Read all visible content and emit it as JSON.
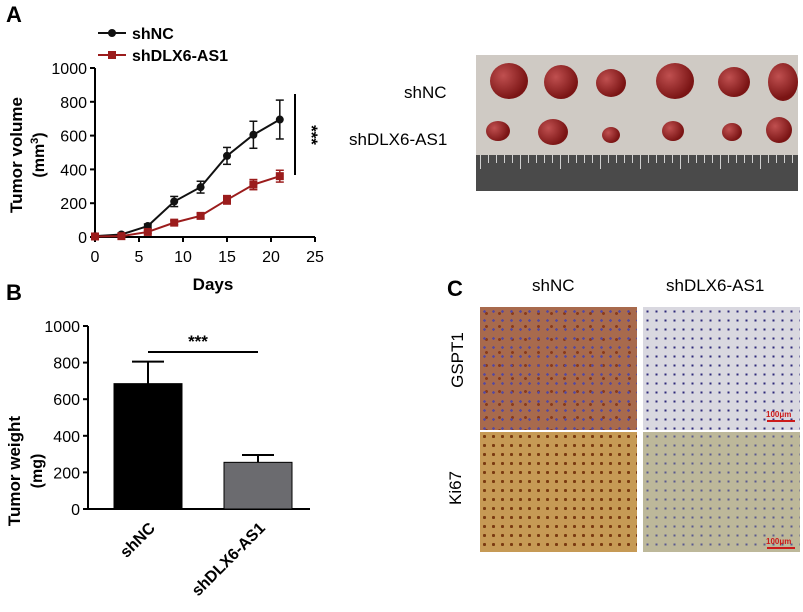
{
  "panels": {
    "a": "A",
    "b": "B",
    "c": "C"
  },
  "chart_data": [
    {
      "type": "line",
      "xlabel": "Days",
      "ylabel_line1": "Tumor volume",
      "ylabel_line2_prefix": "(mm",
      "ylabel_line2_sup": "3",
      "ylabel_line2_suffix": ")",
      "xlim": [
        0,
        25
      ],
      "ylim": [
        0,
        1000
      ],
      "xticks": [
        0,
        5,
        10,
        15,
        20,
        25
      ],
      "yticks": [
        0,
        200,
        400,
        600,
        800,
        1000
      ],
      "significance": "***",
      "series": [
        {
          "name": "shNC",
          "color": "#111111",
          "marker": "circle",
          "x": [
            0,
            3,
            6,
            9,
            12,
            15,
            18,
            21
          ],
          "y": [
            5,
            15,
            65,
            210,
            295,
            480,
            605,
            695
          ],
          "err": [
            0,
            5,
            12,
            30,
            35,
            50,
            80,
            115
          ]
        },
        {
          "name": "shDLX6-AS1",
          "color": "#9b1c1c",
          "marker": "square",
          "x": [
            0,
            3,
            6,
            9,
            12,
            15,
            18,
            21
          ],
          "y": [
            3,
            5,
            30,
            85,
            125,
            220,
            310,
            360
          ],
          "err": [
            0,
            3,
            8,
            12,
            15,
            25,
            30,
            35
          ]
        }
      ]
    },
    {
      "type": "bar",
      "categories": [
        "shNC",
        "shDLX6-AS1"
      ],
      "values": [
        685,
        255
      ],
      "err": [
        120,
        40
      ],
      "colors": [
        "#000000",
        "#6b6b6f"
      ],
      "ylabel_line1": "Tumor weight",
      "ylabel_line2": "(mg)",
      "ylim": [
        0,
        1000
      ],
      "yticks": [
        0,
        200,
        400,
        600,
        800,
        1000
      ],
      "significance": "***"
    }
  ],
  "photo": {
    "row_labels": [
      "shNC",
      "shDLX6-AS1"
    ]
  },
  "ihc": {
    "col_labels": [
      "shNC",
      "shDLX6-AS1"
    ],
    "row_labels": [
      "GSPT1",
      "Ki67"
    ],
    "scale_bar": "100μm"
  }
}
